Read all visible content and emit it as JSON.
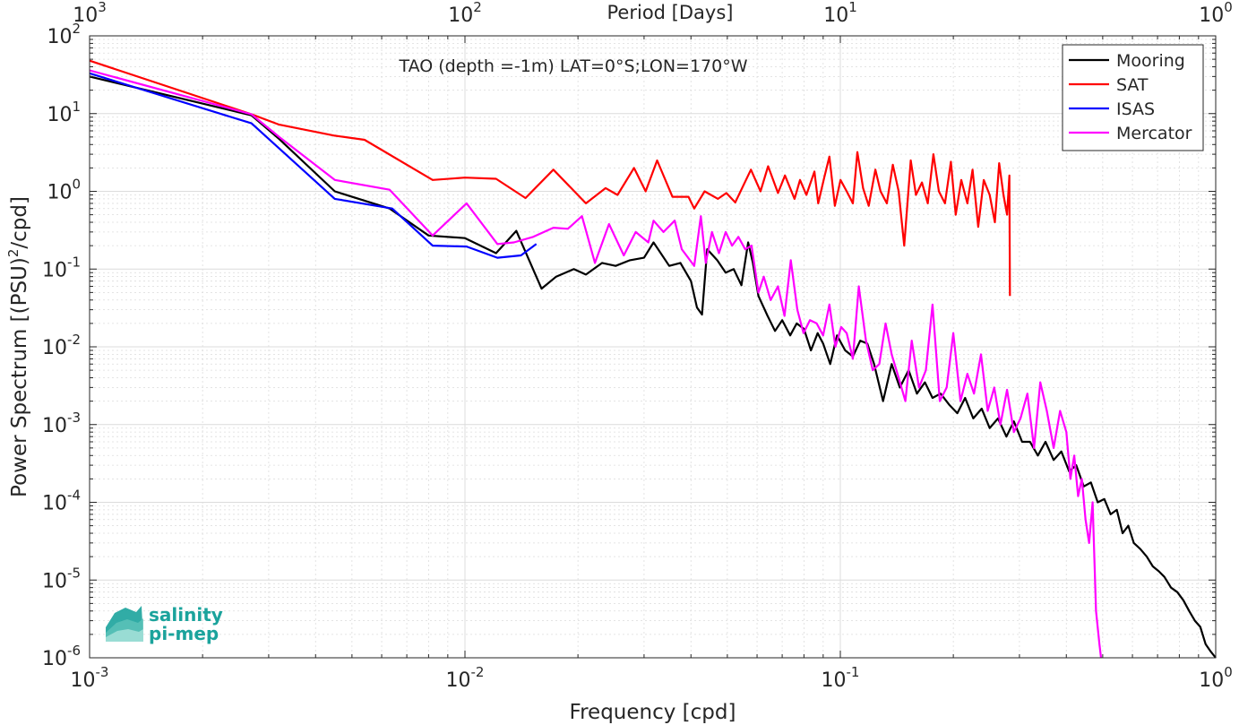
{
  "chart_data": {
    "type": "line",
    "title": "TAO (depth =-1m) LAT=0°S;LON=170°W",
    "xlabel": "Frequency [cpd]",
    "ylabel": "Power Spectrum [(PSU)",
    "ylabel_exp": "2",
    "ylabel_tail": "/cpd]",
    "top_xlabel": "Period [Days]",
    "x_scale": "log",
    "y_scale": "log",
    "xlim": [
      0.001,
      1
    ],
    "ylim": [
      1e-06,
      100
    ],
    "grid": true,
    "legend_position": "top-right",
    "x_ticks": [
      {
        "base": "10",
        "exp": "-3",
        "value": 0.001
      },
      {
        "base": "10",
        "exp": "-2",
        "value": 0.01
      },
      {
        "base": "10",
        "exp": "-1",
        "value": 0.1
      },
      {
        "base": "10",
        "exp": "0",
        "value": 1
      }
    ],
    "top_ticks": [
      {
        "base": "10",
        "exp": "3",
        "value": 0.001
      },
      {
        "base": "10",
        "exp": "2",
        "value": 0.01
      },
      {
        "base": "10",
        "exp": "1",
        "value": 0.1
      },
      {
        "base": "10",
        "exp": "0",
        "value": 1
      }
    ],
    "y_ticks": [
      {
        "base": "10",
        "exp": "2",
        "value": 100
      },
      {
        "base": "10",
        "exp": "1",
        "value": 10
      },
      {
        "base": "10",
        "exp": "0",
        "value": 1
      },
      {
        "base": "10",
        "exp": "-1",
        "value": 0.1
      },
      {
        "base": "10",
        "exp": "-2",
        "value": 0.01
      },
      {
        "base": "10",
        "exp": "-3",
        "value": 0.001
      },
      {
        "base": "10",
        "exp": "-4",
        "value": 0.0001
      },
      {
        "base": "10",
        "exp": "-5",
        "value": 1e-05
      },
      {
        "base": "10",
        "exp": "-6",
        "value": 1e-06
      }
    ],
    "series": [
      {
        "name": "Mooring",
        "color": "#000000",
        "x": [
          0.001,
          0.0027,
          0.0032,
          0.0045,
          0.0063,
          0.008,
          0.01,
          0.0121,
          0.0137,
          0.016,
          0.0175,
          0.0195,
          0.021,
          0.0232,
          0.0252,
          0.0275,
          0.03,
          0.0318,
          0.035,
          0.0375,
          0.04,
          0.0415,
          0.0428,
          0.0442,
          0.047,
          0.0495,
          0.052,
          0.0545,
          0.0568,
          0.0585,
          0.0605,
          0.064,
          0.067,
          0.07,
          0.0735,
          0.0765,
          0.08,
          0.0835,
          0.087,
          0.09,
          0.094,
          0.098,
          0.103,
          0.108,
          0.113,
          0.118,
          0.123,
          0.13,
          0.137,
          0.144,
          0.152,
          0.16,
          0.168,
          0.176,
          0.185,
          0.195,
          0.205,
          0.215,
          0.226,
          0.238,
          0.25,
          0.263,
          0.277,
          0.29,
          0.305,
          0.32,
          0.336,
          0.352,
          0.37,
          0.388,
          0.407,
          0.425,
          0.445,
          0.465,
          0.485,
          0.505,
          0.525,
          0.545,
          0.565,
          0.585,
          0.605,
          0.63,
          0.655,
          0.68,
          0.705,
          0.73,
          0.76,
          0.79,
          0.82,
          0.85,
          0.88,
          0.91,
          0.94,
          0.97,
          1.0
        ],
        "y": [
          30.0,
          9.5,
          4.7,
          1.0,
          0.6,
          0.27,
          0.25,
          0.16,
          0.31,
          0.056,
          0.08,
          0.1,
          0.085,
          0.12,
          0.11,
          0.13,
          0.14,
          0.22,
          0.11,
          0.12,
          0.07,
          0.032,
          0.026,
          0.18,
          0.13,
          0.09,
          0.1,
          0.062,
          0.22,
          0.12,
          0.045,
          0.025,
          0.016,
          0.022,
          0.014,
          0.02,
          0.017,
          0.009,
          0.015,
          0.011,
          0.006,
          0.014,
          0.009,
          0.0075,
          0.012,
          0.011,
          0.006,
          0.002,
          0.006,
          0.003,
          0.005,
          0.0025,
          0.0035,
          0.0022,
          0.0025,
          0.0018,
          0.0014,
          0.0022,
          0.0012,
          0.0016,
          0.0009,
          0.0012,
          0.0007,
          0.0011,
          0.0006,
          0.0006,
          0.0004,
          0.0006,
          0.00035,
          0.00045,
          0.00025,
          0.0003,
          0.00016,
          0.00018,
          0.0001,
          0.00011,
          7e-05,
          8e-05,
          4e-05,
          5e-05,
          3e-05,
          2.5e-05,
          2e-05,
          1.5e-05,
          1.3e-05,
          1.1e-05,
          8e-06,
          7e-06,
          5.5e-06,
          4e-06,
          3e-06,
          2.5e-06,
          1.5e-06,
          1.2e-06,
          1e-06
        ]
      },
      {
        "name": "SAT",
        "color": "#ff0000",
        "x": [
          0.001,
          0.0027,
          0.0032,
          0.0045,
          0.0054,
          0.0082,
          0.01,
          0.0121,
          0.0145,
          0.0172,
          0.021,
          0.0237,
          0.0255,
          0.0282,
          0.0303,
          0.0325,
          0.0357,
          0.0394,
          0.0408,
          0.0435,
          0.0472,
          0.0497,
          0.0525,
          0.0578,
          0.0613,
          0.0642,
          0.0682,
          0.0712,
          0.0755,
          0.0781,
          0.0812,
          0.0853,
          0.0873,
          0.0906,
          0.0935,
          0.0967,
          0.1001,
          0.104,
          0.108,
          0.111,
          0.115,
          0.119,
          0.124,
          0.128,
          0.133,
          0.138,
          0.143,
          0.148,
          0.154,
          0.159,
          0.165,
          0.171,
          0.177,
          0.183,
          0.19,
          0.197,
          0.203,
          0.21,
          0.218,
          0.225,
          0.233,
          0.241,
          0.25,
          0.258,
          0.265,
          0.272,
          0.278,
          0.282,
          0.283
        ],
        "y": [
          48,
          9.8,
          7.2,
          5.2,
          4.6,
          1.4,
          1.5,
          1.45,
          0.82,
          1.9,
          0.7,
          1.1,
          0.9,
          2.0,
          1.0,
          2.5,
          0.85,
          0.85,
          0.6,
          1.0,
          0.8,
          0.95,
          0.72,
          1.9,
          1.0,
          2.1,
          0.95,
          1.6,
          0.8,
          1.4,
          0.9,
          1.8,
          0.7,
          1.5,
          2.8,
          0.65,
          1.4,
          1.0,
          0.7,
          3.2,
          1.1,
          0.65,
          1.9,
          1.0,
          0.7,
          2.2,
          1.0,
          0.2,
          2.5,
          0.9,
          1.3,
          0.7,
          3.0,
          1.0,
          0.7,
          2.4,
          0.5,
          1.4,
          0.7,
          1.9,
          0.35,
          1.4,
          0.9,
          0.4,
          2.3,
          0.9,
          0.5,
          1.6,
          0.045
        ]
      },
      {
        "name": "ISAS",
        "color": "#0000ff",
        "x": [
          0.001,
          0.0027,
          0.0045,
          0.0064,
          0.0082,
          0.0101,
          0.0122,
          0.0141,
          0.0155
        ],
        "y": [
          33,
          7.5,
          0.8,
          0.6,
          0.2,
          0.195,
          0.14,
          0.15,
          0.21
        ]
      },
      {
        "name": "Mercator",
        "color": "#ff00ff",
        "x": [
          0.001,
          0.0027,
          0.0032,
          0.0045,
          0.0063,
          0.0082,
          0.0101,
          0.0122,
          0.0135,
          0.0152,
          0.0172,
          0.0188,
          0.0205,
          0.0222,
          0.0242,
          0.0265,
          0.0285,
          0.0308,
          0.0318,
          0.0338,
          0.0362,
          0.0378,
          0.0408,
          0.0425,
          0.0438,
          0.0455,
          0.0475,
          0.0495,
          0.0515,
          0.0535,
          0.0558,
          0.058,
          0.0605,
          0.0625,
          0.0652,
          0.0682,
          0.071,
          0.0738,
          0.0768,
          0.0798,
          0.083,
          0.0865,
          0.09,
          0.0935,
          0.097,
          0.1005,
          0.104,
          0.108,
          0.112,
          0.117,
          0.122,
          0.127,
          0.132,
          0.137,
          0.143,
          0.149,
          0.155,
          0.162,
          0.169,
          0.176,
          0.184,
          0.192,
          0.2,
          0.209,
          0.218,
          0.227,
          0.237,
          0.247,
          0.257,
          0.267,
          0.278,
          0.29,
          0.302,
          0.315,
          0.328,
          0.341,
          0.355,
          0.37,
          0.385,
          0.4,
          0.41,
          0.42,
          0.43,
          0.44,
          0.45,
          0.46,
          0.47,
          0.48,
          0.49,
          0.495
        ],
        "y": [
          36,
          9.8,
          5.0,
          1.4,
          1.05,
          0.27,
          0.7,
          0.21,
          0.22,
          0.26,
          0.34,
          0.33,
          0.48,
          0.12,
          0.38,
          0.15,
          0.3,
          0.22,
          0.42,
          0.3,
          0.42,
          0.18,
          0.11,
          0.48,
          0.12,
          0.3,
          0.16,
          0.3,
          0.2,
          0.26,
          0.18,
          0.2,
          0.05,
          0.08,
          0.04,
          0.06,
          0.025,
          0.13,
          0.03,
          0.015,
          0.022,
          0.02,
          0.014,
          0.035,
          0.01,
          0.018,
          0.015,
          0.007,
          0.06,
          0.012,
          0.005,
          0.006,
          0.02,
          0.008,
          0.004,
          0.002,
          0.012,
          0.003,
          0.005,
          0.035,
          0.002,
          0.003,
          0.015,
          0.002,
          0.0045,
          0.0025,
          0.008,
          0.0015,
          0.003,
          0.001,
          0.0028,
          0.0008,
          0.0012,
          0.0025,
          0.0005,
          0.0035,
          0.0015,
          0.0005,
          0.0015,
          0.0008,
          0.0002,
          0.0004,
          0.00012,
          0.0002,
          6e-05,
          3e-05,
          0.0001,
          4e-06,
          1.5e-06,
          1e-06
        ]
      }
    ]
  },
  "logo": {
    "line1": "salinity",
    "line2": "pi-mep",
    "color": "#1ba39c"
  },
  "colors": {
    "axis": "#262626",
    "grid": "#dcdcdc"
  }
}
